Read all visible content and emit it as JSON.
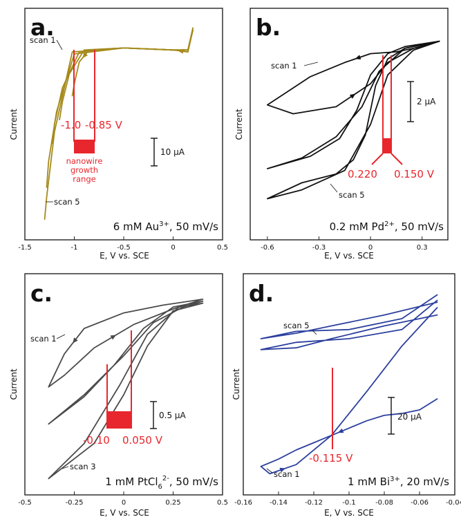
{
  "colors": {
    "a": "#a58a1c",
    "b": "#111111",
    "c": "#4a4a4a",
    "d": "#2b3f9e",
    "annotation": "#e8262d"
  },
  "chart_data": [
    {
      "panel": "a.",
      "type": "line",
      "title": "",
      "condition_main": "6 mM Au",
      "condition_sup": "3+",
      "condition_tail": ", 50 mV/s",
      "xlabel": "E, V vs. SCE",
      "ylabel": "Current",
      "xlim": [
        -1.5,
        0.5
      ],
      "x_ticks": [
        "-1.5",
        "-1",
        "-0.5",
        "0",
        "0.5"
      ],
      "x_tick_values": [
        -1.5,
        -1,
        -0.5,
        0,
        0.5
      ],
      "scale_bar": "10 μA",
      "labels": {
        "first_scan": "scan 1",
        "last_scan": "scan 5"
      },
      "annotations": {
        "left": "-1.0",
        "right": "-0.85 V",
        "range_label": [
          "nanowire",
          "growth",
          "range"
        ]
      },
      "series": [
        {
          "x": [
            0.2,
            0.15,
            0.0,
            -0.5,
            -0.85,
            -0.95,
            -1.0,
            -1.02
          ],
          "y": [
            0.96,
            0.85,
            0.86,
            0.87,
            0.86,
            0.8,
            0.69,
            0.63
          ]
        },
        {
          "x": [
            0.2,
            0.15,
            0.0,
            -0.5,
            -0.9,
            -1.05,
            -1.12,
            -1.15
          ],
          "y": [
            0.96,
            0.86,
            0.86,
            0.87,
            0.86,
            0.74,
            0.6,
            0.51
          ]
        },
        {
          "x": [
            0.2,
            0.15,
            0.0,
            -0.5,
            -0.95,
            -1.12,
            -1.2,
            -1.22
          ],
          "y": [
            0.97,
            0.86,
            0.86,
            0.87,
            0.85,
            0.67,
            0.49,
            0.39
          ]
        },
        {
          "x": [
            0.2,
            0.15,
            0.0,
            -0.5,
            -1.0,
            -1.18,
            -1.26,
            -1.28
          ],
          "y": [
            0.97,
            0.86,
            0.86,
            0.87,
            0.84,
            0.55,
            0.3,
            0.17
          ]
        },
        {
          "x": [
            0.2,
            0.15,
            0.0,
            -0.5,
            -1.02,
            -1.2,
            -1.28,
            -1.3
          ],
          "y": [
            0.96,
            0.86,
            0.86,
            0.87,
            0.85,
            0.45,
            0.12,
            0.01
          ]
        }
      ]
    },
    {
      "panel": "b.",
      "type": "line",
      "title": "",
      "condition_main": "0.2 mM Pd",
      "condition_sup": "2+",
      "condition_tail": ", 50 mV/s",
      "xlabel": "E, V vs. SCE",
      "ylabel": "Current",
      "xlim": [
        -0.7,
        0.45
      ],
      "x_ticks": [
        "-0.6",
        "-0.3",
        "0",
        "0.3"
      ],
      "x_tick_values": [
        -0.6,
        -0.3,
        0,
        0.3
      ],
      "scale_bar": "2 μA",
      "labels": {
        "first_scan": "scan 1",
        "last_scan": "scan 5"
      },
      "annotations": {
        "left": "0.220",
        "right": "0.150 V"
      },
      "series": [
        {
          "x": [
            0.4,
            0.3,
            0.15,
            0.0,
            -0.15,
            -0.35,
            -0.6,
            -0.45,
            -0.2,
            0.0,
            0.1,
            0.25,
            0.4
          ],
          "y": [
            0.97,
            0.94,
            0.91,
            0.9,
            0.85,
            0.77,
            0.61,
            0.56,
            0.6,
            0.73,
            0.85,
            0.93,
            0.97
          ]
        },
        {
          "x": [
            0.4,
            0.2,
            0.1,
            0.0,
            -0.08,
            -0.18,
            -0.35,
            -0.6,
            -0.4,
            -0.2,
            -0.05,
            0.05,
            0.2,
            0.4
          ],
          "y": [
            0.97,
            0.94,
            0.9,
            0.78,
            0.58,
            0.42,
            0.32,
            0.25,
            0.31,
            0.43,
            0.6,
            0.8,
            0.93,
            0.97
          ]
        },
        {
          "x": [
            0.4,
            0.2,
            0.1,
            0.03,
            -0.03,
            -0.1,
            -0.2,
            -0.4,
            -0.6,
            -0.4,
            -0.15,
            0.0,
            0.1,
            0.25,
            0.4
          ],
          "y": [
            0.97,
            0.93,
            0.87,
            0.72,
            0.44,
            0.3,
            0.22,
            0.17,
            0.08,
            0.13,
            0.24,
            0.5,
            0.78,
            0.92,
            0.97
          ]
        }
      ]
    },
    {
      "panel": "c.",
      "type": "line",
      "title": "",
      "condition_main": "1 mM PtCl",
      "condition_sub": "6",
      "condition_sup": "2-",
      "condition_tail": ", 50 mV/s",
      "xlabel": "E, V vs. SCE",
      "ylabel": "Current",
      "xlim": [
        -0.5,
        0.5
      ],
      "x_ticks": [
        "-0.5",
        "-0.25",
        "0",
        "0.25",
        "0.5"
      ],
      "x_tick_values": [
        -0.5,
        -0.25,
        0,
        0.25,
        0.5
      ],
      "scale_bar": "0.5 μA",
      "labels": {
        "first_scan": "scan 1",
        "last_scan": "scan 3"
      },
      "annotations": {
        "left": "-0.10",
        "right": "0.050 V"
      },
      "series": [
        {
          "x": [
            0.4,
            0.2,
            0.0,
            -0.2,
            -0.3,
            -0.38,
            -0.3,
            -0.15,
            0.05,
            0.25,
            0.4
          ],
          "y": [
            0.94,
            0.91,
            0.87,
            0.79,
            0.66,
            0.49,
            0.55,
            0.69,
            0.81,
            0.89,
            0.94
          ]
        },
        {
          "x": [
            0.4,
            0.25,
            0.1,
            -0.05,
            -0.2,
            -0.38,
            -0.2,
            0.0,
            0.15,
            0.3,
            0.4
          ],
          "y": [
            0.93,
            0.9,
            0.79,
            0.6,
            0.44,
            0.3,
            0.45,
            0.65,
            0.82,
            0.9,
            0.93
          ]
        },
        {
          "x": [
            0.4,
            0.25,
            0.12,
            0.0,
            -0.15,
            -0.38,
            -0.2,
            -0.02,
            0.12,
            0.28,
            0.4
          ],
          "y": [
            0.92,
            0.88,
            0.7,
            0.45,
            0.2,
            0.02,
            0.2,
            0.5,
            0.76,
            0.9,
            0.92
          ]
        }
      ]
    },
    {
      "panel": "d.",
      "type": "line",
      "title": "",
      "condition_main": "1 mM Bi",
      "condition_sup": "3+",
      "condition_tail": ", 20 mV/s",
      "xlabel": "E, V vs. SCE",
      "ylabel": "Current",
      "xlim": [
        -0.16,
        -0.04
      ],
      "x_ticks": [
        "-0.16",
        "-0.14",
        "-0.12",
        "-0.1",
        "-0.08",
        "-0.06",
        "-0.04"
      ],
      "x_tick_values": [
        -0.16,
        -0.14,
        -0.12,
        -0.1,
        -0.08,
        -0.06,
        -0.04
      ],
      "scale_bar": "20 μA",
      "labels": {
        "first_scan": "scan 1",
        "last_scan": "scan 5"
      },
      "annotations": {
        "left": "-0.115 V"
      },
      "series": [
        {
          "x": [
            -0.05,
            -0.06,
            -0.07,
            -0.08,
            -0.09,
            -0.1,
            -0.11,
            -0.12,
            -0.13,
            -0.14,
            -0.15,
            -0.145,
            -0.13,
            -0.11,
            -0.09,
            -0.07,
            -0.05
          ],
          "y": [
            0.42,
            0.36,
            0.34,
            0.33,
            0.3,
            0.26,
            0.22,
            0.18,
            0.14,
            0.09,
            0.05,
            0.01,
            0.06,
            0.22,
            0.46,
            0.71,
            0.92
          ]
        },
        {
          "x": [
            -0.05,
            -0.08,
            -0.11,
            -0.13,
            -0.15,
            -0.13,
            -0.1,
            -0.07,
            -0.05
          ],
          "y": [
            0.88,
            0.82,
            0.75,
            0.7,
            0.69,
            0.73,
            0.75,
            0.8,
            0.96
          ]
        },
        {
          "x": [
            -0.05,
            -0.08,
            -0.11,
            -0.13,
            -0.15,
            -0.13,
            -0.1,
            -0.07,
            -0.05
          ],
          "y": [
            0.95,
            0.88,
            0.82,
            0.78,
            0.75,
            0.79,
            0.8,
            0.86,
            0.99
          ]
        }
      ]
    }
  ]
}
